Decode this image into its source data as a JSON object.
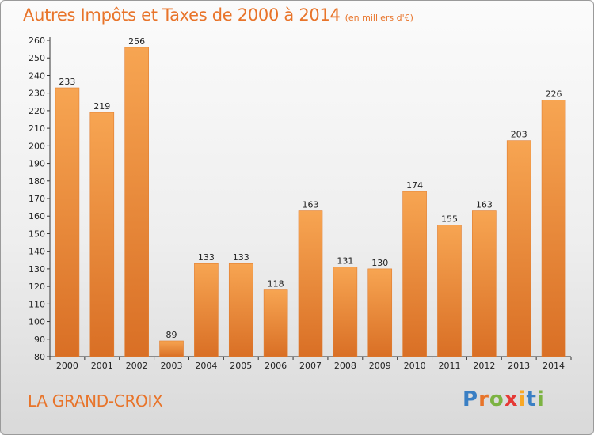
{
  "header": {
    "title": "Autres Impôts et Taxes de 2000 à 2014",
    "subtitle": "(en milliers d'€)"
  },
  "footer": {
    "commune": "LA GRAND-CROIX",
    "logo_letters": [
      "P",
      "r",
      "o",
      "x",
      "i",
      "t",
      "i"
    ],
    "logo_colors": [
      "#3a7fc4",
      "#e8742a",
      "#7cb342",
      "#e53935",
      "#f9a825",
      "#3a7fc4",
      "#7cb342"
    ]
  },
  "chart_data": {
    "type": "bar",
    "title": "Autres Impôts et Taxes de 2000 à 2014",
    "subtitle": "(en milliers d'€)",
    "xlabel": "",
    "ylabel": "",
    "categories": [
      "2000",
      "2001",
      "2002",
      "2003",
      "2004",
      "2005",
      "2006",
      "2007",
      "2008",
      "2009",
      "2010",
      "2011",
      "2012",
      "2013",
      "2014"
    ],
    "values": [
      233,
      219,
      256,
      89,
      133,
      133,
      118,
      163,
      131,
      130,
      174,
      155,
      163,
      203,
      226
    ],
    "ylim": [
      80,
      260
    ],
    "yticks": [
      80,
      90,
      100,
      110,
      120,
      130,
      140,
      150,
      160,
      170,
      180,
      190,
      200,
      210,
      220,
      230,
      240,
      250,
      260
    ],
    "grid": false,
    "bar_color": "#f0923e",
    "bar_color_dark": "#d9702a"
  }
}
